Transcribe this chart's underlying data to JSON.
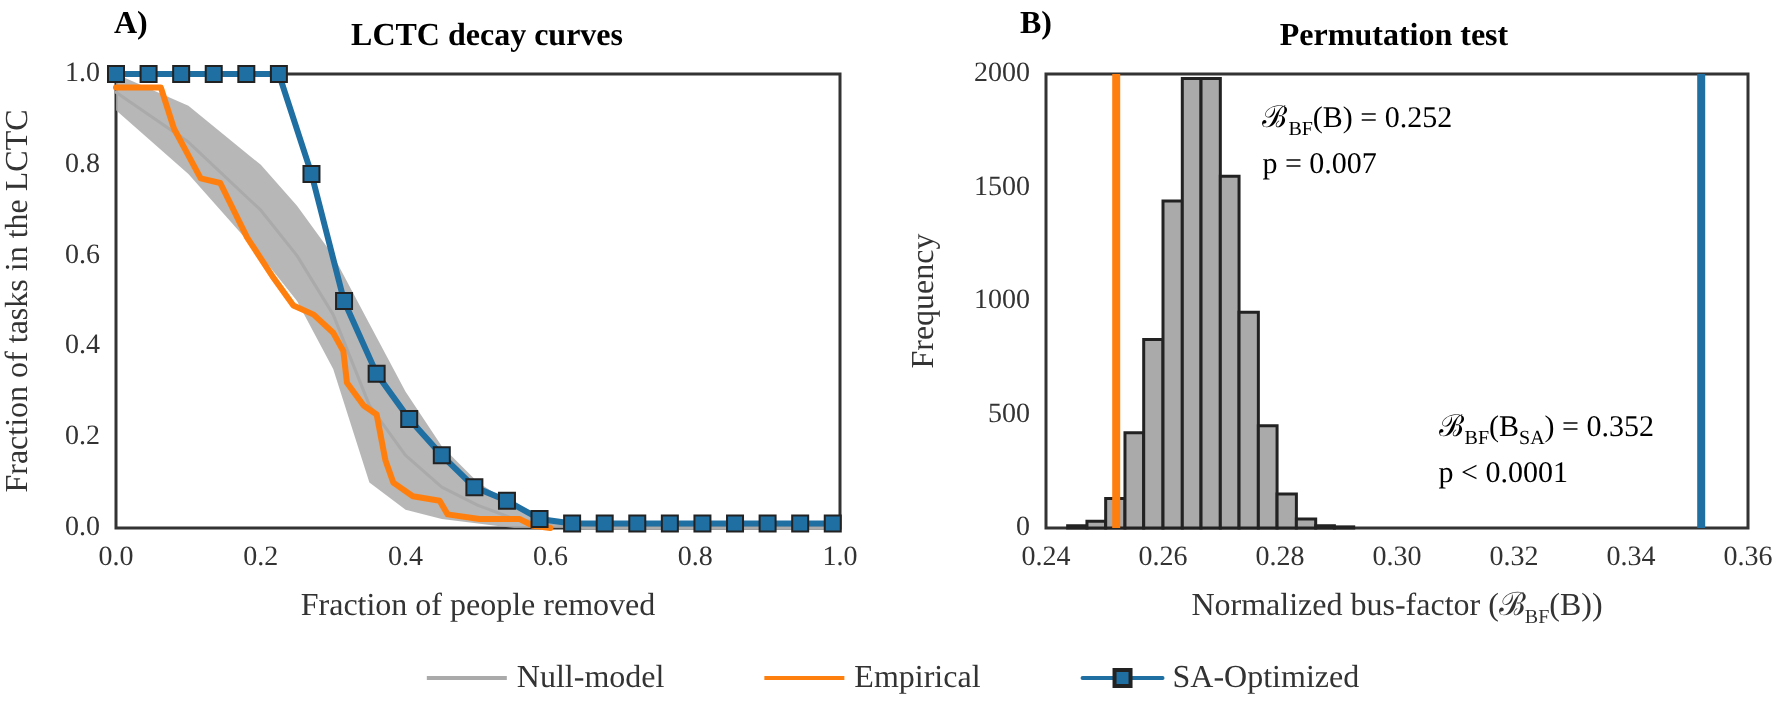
{
  "chart_data": [
    {
      "type": "line",
      "title": "LCTC decay curves",
      "xlabel": "Fraction of people removed",
      "ylabel": "Fraction of tasks in the LCTC",
      "annotations": [
        "A)"
      ],
      "xlim": [
        0,
        1
      ],
      "ylim": [
        0,
        1
      ],
      "xticks": [
        {
          "value": 0,
          "label": "0.0"
        },
        {
          "value": 0.2,
          "label": "0.2"
        },
        {
          "value": 0.4,
          "label": "0.4"
        },
        {
          "value": 0.6,
          "label": "0.6"
        },
        {
          "value": 0.8,
          "label": "0.8"
        },
        {
          "value": 1,
          "label": "1.0"
        }
      ],
      "yticks": [
        {
          "value": 0,
          "label": "0.0"
        },
        {
          "value": 0.2,
          "label": "0.2"
        },
        {
          "value": 0.4,
          "label": "0.4"
        },
        {
          "value": 0.6,
          "label": "0.6"
        },
        {
          "value": 0.8,
          "label": "0.8"
        },
        {
          "value": 1,
          "label": "1.0"
        }
      ],
      "grid": false,
      "legend": "bottom",
      "line_style": "solid",
      "series": [
        {
          "name": "Null-model",
          "color": "#aaaaaa",
          "marker": "none",
          "x": [
            0,
            0.1,
            0.2,
            0.25,
            0.3,
            0.35,
            0.4,
            0.45,
            0.5,
            0.55,
            0.6,
            0.65,
            1
          ],
          "values": [
            0.96,
            0.85,
            0.7,
            0.6,
            0.47,
            0.27,
            0.16,
            0.09,
            0.05,
            0.02,
            0.01,
            0,
            0
          ],
          "lower": [
            0.92,
            0.78,
            0.6,
            0.5,
            0.35,
            0.1,
            0.04,
            0.02,
            0.01,
            0,
            0,
            0,
            0
          ],
          "upper": [
            1.0,
            0.93,
            0.8,
            0.71,
            0.6,
            0.45,
            0.3,
            0.18,
            0.1,
            0.05,
            0.02,
            0,
            0
          ]
        },
        {
          "name": "Empirical",
          "color": "#ff7f0e",
          "marker": "none",
          "x": [
            0,
            0.062,
            0.08,
            0.117,
            0.144,
            0.181,
            0.218,
            0.245,
            0.273,
            0.3,
            0.314,
            0.319,
            0.342,
            0.36,
            0.372,
            0.383,
            0.41,
            0.447,
            0.458,
            0.502,
            0.557,
            0.576,
            0.6
          ],
          "values": [
            0.97,
            0.97,
            0.88,
            0.77,
            0.76,
            0.64,
            0.55,
            0.49,
            0.47,
            0.43,
            0.39,
            0.32,
            0.27,
            0.25,
            0.15,
            0.1,
            0.07,
            0.06,
            0.03,
            0.02,
            0.02,
            0.005,
            0
          ]
        },
        {
          "name": "SA-Optimized",
          "color": "#1f6fa3",
          "marker": "square",
          "x": [
            0,
            0.045,
            0.09,
            0.135,
            0.18,
            0.225,
            0.27,
            0.315,
            0.36,
            0.405,
            0.45,
            0.495,
            0.54,
            0.585,
            0.63,
            0.675,
            0.72,
            0.765,
            0.81,
            0.855,
            0.9,
            0.945,
            0.99
          ],
          "values": [
            1.0,
            1.0,
            1.0,
            1.0,
            1.0,
            1.0,
            0.78,
            0.5,
            0.34,
            0.24,
            0.16,
            0.09,
            0.06,
            0.02,
            0.01,
            0.01,
            0.01,
            0.01,
            0.01,
            0.01,
            0.01,
            0.01,
            0.01
          ]
        }
      ]
    },
    {
      "type": "histogram",
      "title": "Permutation test",
      "xlabel": "Normalized bus-factor (ℬ$_{BF}$(B))",
      "ylabel": "Frequency",
      "annotations": [
        "B)",
        "ℬ$_{BF}$(B) = 0.252",
        "p = 0.007",
        "ℬ$_{BF}$(B$_{SA}$) = 0.352",
        "p < 0.0001"
      ],
      "xlim": [
        0.24,
        0.36
      ],
      "ylim": [
        0,
        2000
      ],
      "xticks": [
        {
          "value": 0.24,
          "label": "0.24"
        },
        {
          "value": 0.26,
          "label": "0.26"
        },
        {
          "value": 0.28,
          "label": "0.28"
        },
        {
          "value": 0.3,
          "label": "0.30"
        },
        {
          "value": 0.32,
          "label": "0.32"
        },
        {
          "value": 0.34,
          "label": "0.34"
        },
        {
          "value": 0.36,
          "label": "0.36"
        }
      ],
      "yticks": [
        0,
        500,
        1000,
        1500,
        2000
      ],
      "grid": false,
      "color": "#aaaaaa",
      "bins": [
        0.2437,
        0.247,
        0.2502,
        0.2535,
        0.2567,
        0.26,
        0.2633,
        0.2665,
        0.2698,
        0.273,
        0.2763,
        0.2795,
        0.2828,
        0.2861,
        0.2893,
        0.2926
      ],
      "values": [
        10,
        30,
        130,
        420,
        830,
        1440,
        1980,
        1980,
        1550,
        950,
        450,
        150,
        40,
        10,
        5
      ],
      "ref_lines": [
        {
          "axis": "x",
          "value": 0.252,
          "label": null,
          "color": "#ff7f0e"
        },
        {
          "axis": "x",
          "value": 0.352,
          "label": null,
          "color": "#1f6fa3"
        }
      ]
    }
  ]
}
